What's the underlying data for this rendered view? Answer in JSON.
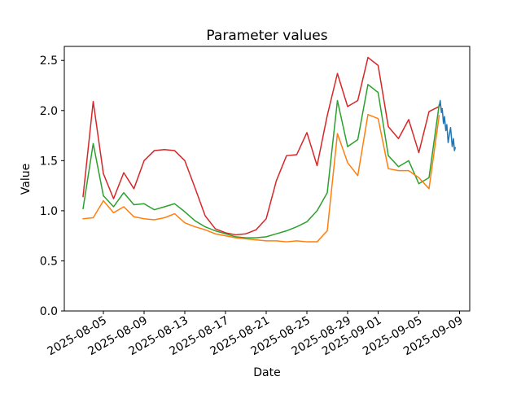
{
  "figure": {
    "title": "Parameter values",
    "xlabel": "Date",
    "ylabel": "Value"
  },
  "chart_data": {
    "type": "line",
    "title": "Parameter values",
    "xlabel": "Date",
    "ylabel": "Value",
    "grid": false,
    "legend": "none",
    "background": "#ffffff",
    "spine_color": "#000000",
    "ylim": [
      0,
      2.64
    ],
    "yticks": [
      0.0,
      0.5,
      1.0,
      1.5,
      2.0,
      2.5
    ],
    "ytick_labels": [
      "0.0",
      "0.5",
      "1.0",
      "1.5",
      "2.0",
      "2.5"
    ],
    "xlim_day_offsets": [
      -1.84,
      38.0
    ],
    "xtick_day_offsets": [
      2,
      6,
      10,
      14,
      18,
      22,
      26,
      29,
      33,
      37
    ],
    "xtick_labels": [
      "2025-08-05",
      "2025-08-09",
      "2025-08-13",
      "2025-08-17",
      "2025-08-21",
      "2025-08-25",
      "2025-08-29",
      "2025-09-01",
      "2025-09-05",
      "2025-09-09"
    ],
    "xtick_rotation_deg": 30,
    "x_dates": [
      "2025-08-03",
      "2025-08-04",
      "2025-08-05",
      "2025-08-06",
      "2025-08-07",
      "2025-08-08",
      "2025-08-09",
      "2025-08-10",
      "2025-08-11",
      "2025-08-12",
      "2025-08-13",
      "2025-08-14",
      "2025-08-15",
      "2025-08-16",
      "2025-08-17",
      "2025-08-18",
      "2025-08-19",
      "2025-08-20",
      "2025-08-21",
      "2025-08-22",
      "2025-08-23",
      "2025-08-24",
      "2025-08-25",
      "2025-08-26",
      "2025-08-27",
      "2025-08-28",
      "2025-08-29",
      "2025-08-30",
      "2025-08-31",
      "2025-09-01",
      "2025-09-02",
      "2025-09-03",
      "2025-09-04",
      "2025-09-05",
      "2025-09-06",
      "2025-09-07"
    ],
    "series": [
      {
        "name": "red-line",
        "color": "#d62728",
        "values": [
          1.14,
          2.09,
          1.37,
          1.12,
          1.38,
          1.22,
          1.5,
          1.6,
          1.61,
          1.6,
          1.5,
          1.23,
          0.95,
          0.82,
          0.78,
          0.76,
          0.77,
          0.81,
          0.92,
          1.3,
          1.55,
          1.56,
          1.78,
          1.45,
          1.95,
          2.37,
          2.04,
          2.1,
          2.53,
          2.45,
          1.84,
          1.72,
          1.91,
          1.58,
          1.99,
          2.04
        ]
      },
      {
        "name": "green-line",
        "color": "#2ca02c",
        "values": [
          1.02,
          1.67,
          1.15,
          1.04,
          1.18,
          1.06,
          1.07,
          1.01,
          1.04,
          1.07,
          0.99,
          0.9,
          0.84,
          0.8,
          0.77,
          0.74,
          0.73,
          0.73,
          0.74,
          0.77,
          0.8,
          0.84,
          0.89,
          1.0,
          1.18,
          2.1,
          1.64,
          1.71,
          2.26,
          2.18,
          1.55,
          1.44,
          1.5,
          1.27,
          1.33,
          2.06
        ]
      },
      {
        "name": "orange-line",
        "color": "#ff7f0e",
        "values": [
          0.92,
          0.93,
          1.1,
          0.98,
          1.04,
          0.94,
          0.92,
          0.91,
          0.93,
          0.97,
          0.88,
          0.84,
          0.81,
          0.77,
          0.75,
          0.73,
          0.72,
          0.71,
          0.7,
          0.7,
          0.69,
          0.7,
          0.69,
          0.69,
          0.8,
          1.77,
          1.48,
          1.35,
          1.96,
          1.92,
          1.42,
          1.4,
          1.4,
          1.33,
          1.22,
          1.95
        ]
      },
      {
        "name": "blue-line",
        "color": "#1f77b4",
        "x_day_offsets": [
          35.02,
          35.1,
          35.22,
          35.3,
          35.42,
          35.52,
          35.65,
          35.75,
          35.88,
          36.0,
          36.12,
          36.28,
          36.4,
          36.5,
          36.58
        ],
        "values": [
          2.05,
          2.1,
          1.98,
          2.02,
          1.87,
          1.94,
          1.8,
          1.86,
          1.68,
          1.76,
          1.83,
          1.64,
          1.72,
          1.6,
          1.63
        ]
      }
    ]
  }
}
